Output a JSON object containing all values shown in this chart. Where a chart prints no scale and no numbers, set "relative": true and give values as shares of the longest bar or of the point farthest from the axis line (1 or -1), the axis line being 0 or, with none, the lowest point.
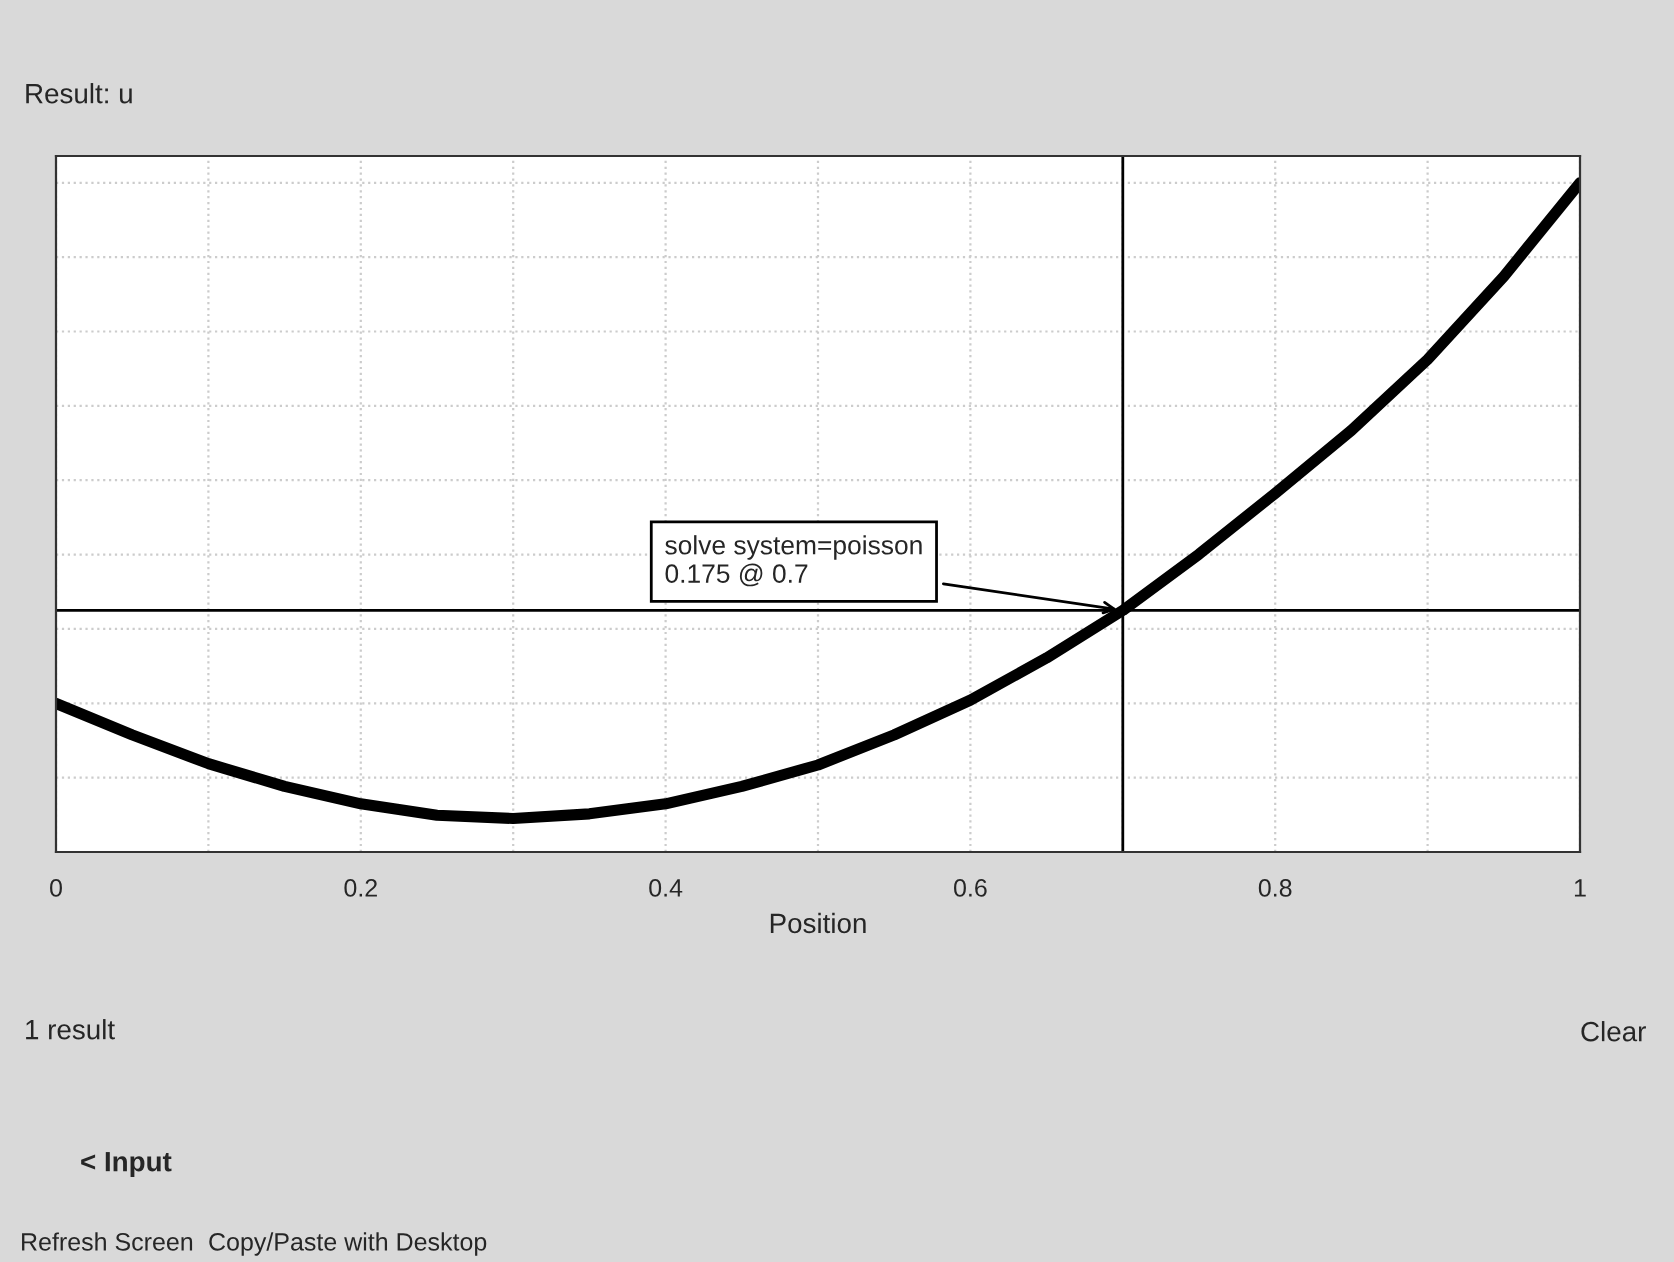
{
  "chart_data": {
    "type": "line",
    "relative": true,
    "xlabel": "Position",
    "x": [
      0,
      0.05,
      0.1,
      0.15,
      0.2,
      0.25,
      0.3,
      0.35,
      0.4,
      0.45,
      0.5,
      0.55,
      0.6,
      0.65,
      0.7,
      0.75,
      0.8,
      0.85,
      0.9,
      0.95,
      1
    ],
    "series": [
      {
        "color": "#000000",
        "values": [
          0.222,
          0.175,
          0.132,
          0.098,
          0.072,
          0.055,
          0.05,
          0.057,
          0.072,
          0.098,
          0.13,
          0.175,
          0.227,
          0.29,
          0.361,
          0.445,
          0.536,
          0.63,
          0.736,
          0.86,
          1
        ]
      }
    ],
    "xlim": [
      0,
      1
    ],
    "xticks": [
      0,
      {
        "value": 0.1,
        "label": null
      },
      0.2,
      {
        "value": 0.3,
        "label": null
      },
      0.4,
      {
        "value": 0.5,
        "label": null
      },
      0.6,
      {
        "value": 0.7,
        "label": null
      },
      0.8,
      {
        "value": 0.9,
        "label": null
      },
      1
    ],
    "ref_lines": [
      {
        "axis": "x",
        "value": 0.7,
        "color": "#000000"
      },
      {
        "axis": "y",
        "value": 0.361,
        "color": "#000000"
      }
    ],
    "annotations": [
      {
        "text": "solve system=poisson\n0.175 @ 0.7",
        "x": 0.7,
        "y": 0.361
      },
      "Result: u",
      "1 result",
      "Clear",
      "< Input",
      "Refresh Screen",
      "Copy/Paste with Desktop"
    ],
    "grid": true,
    "legend": false,
    "marker": "none",
    "line_style": "solid",
    "tick_labels": "x"
  }
}
